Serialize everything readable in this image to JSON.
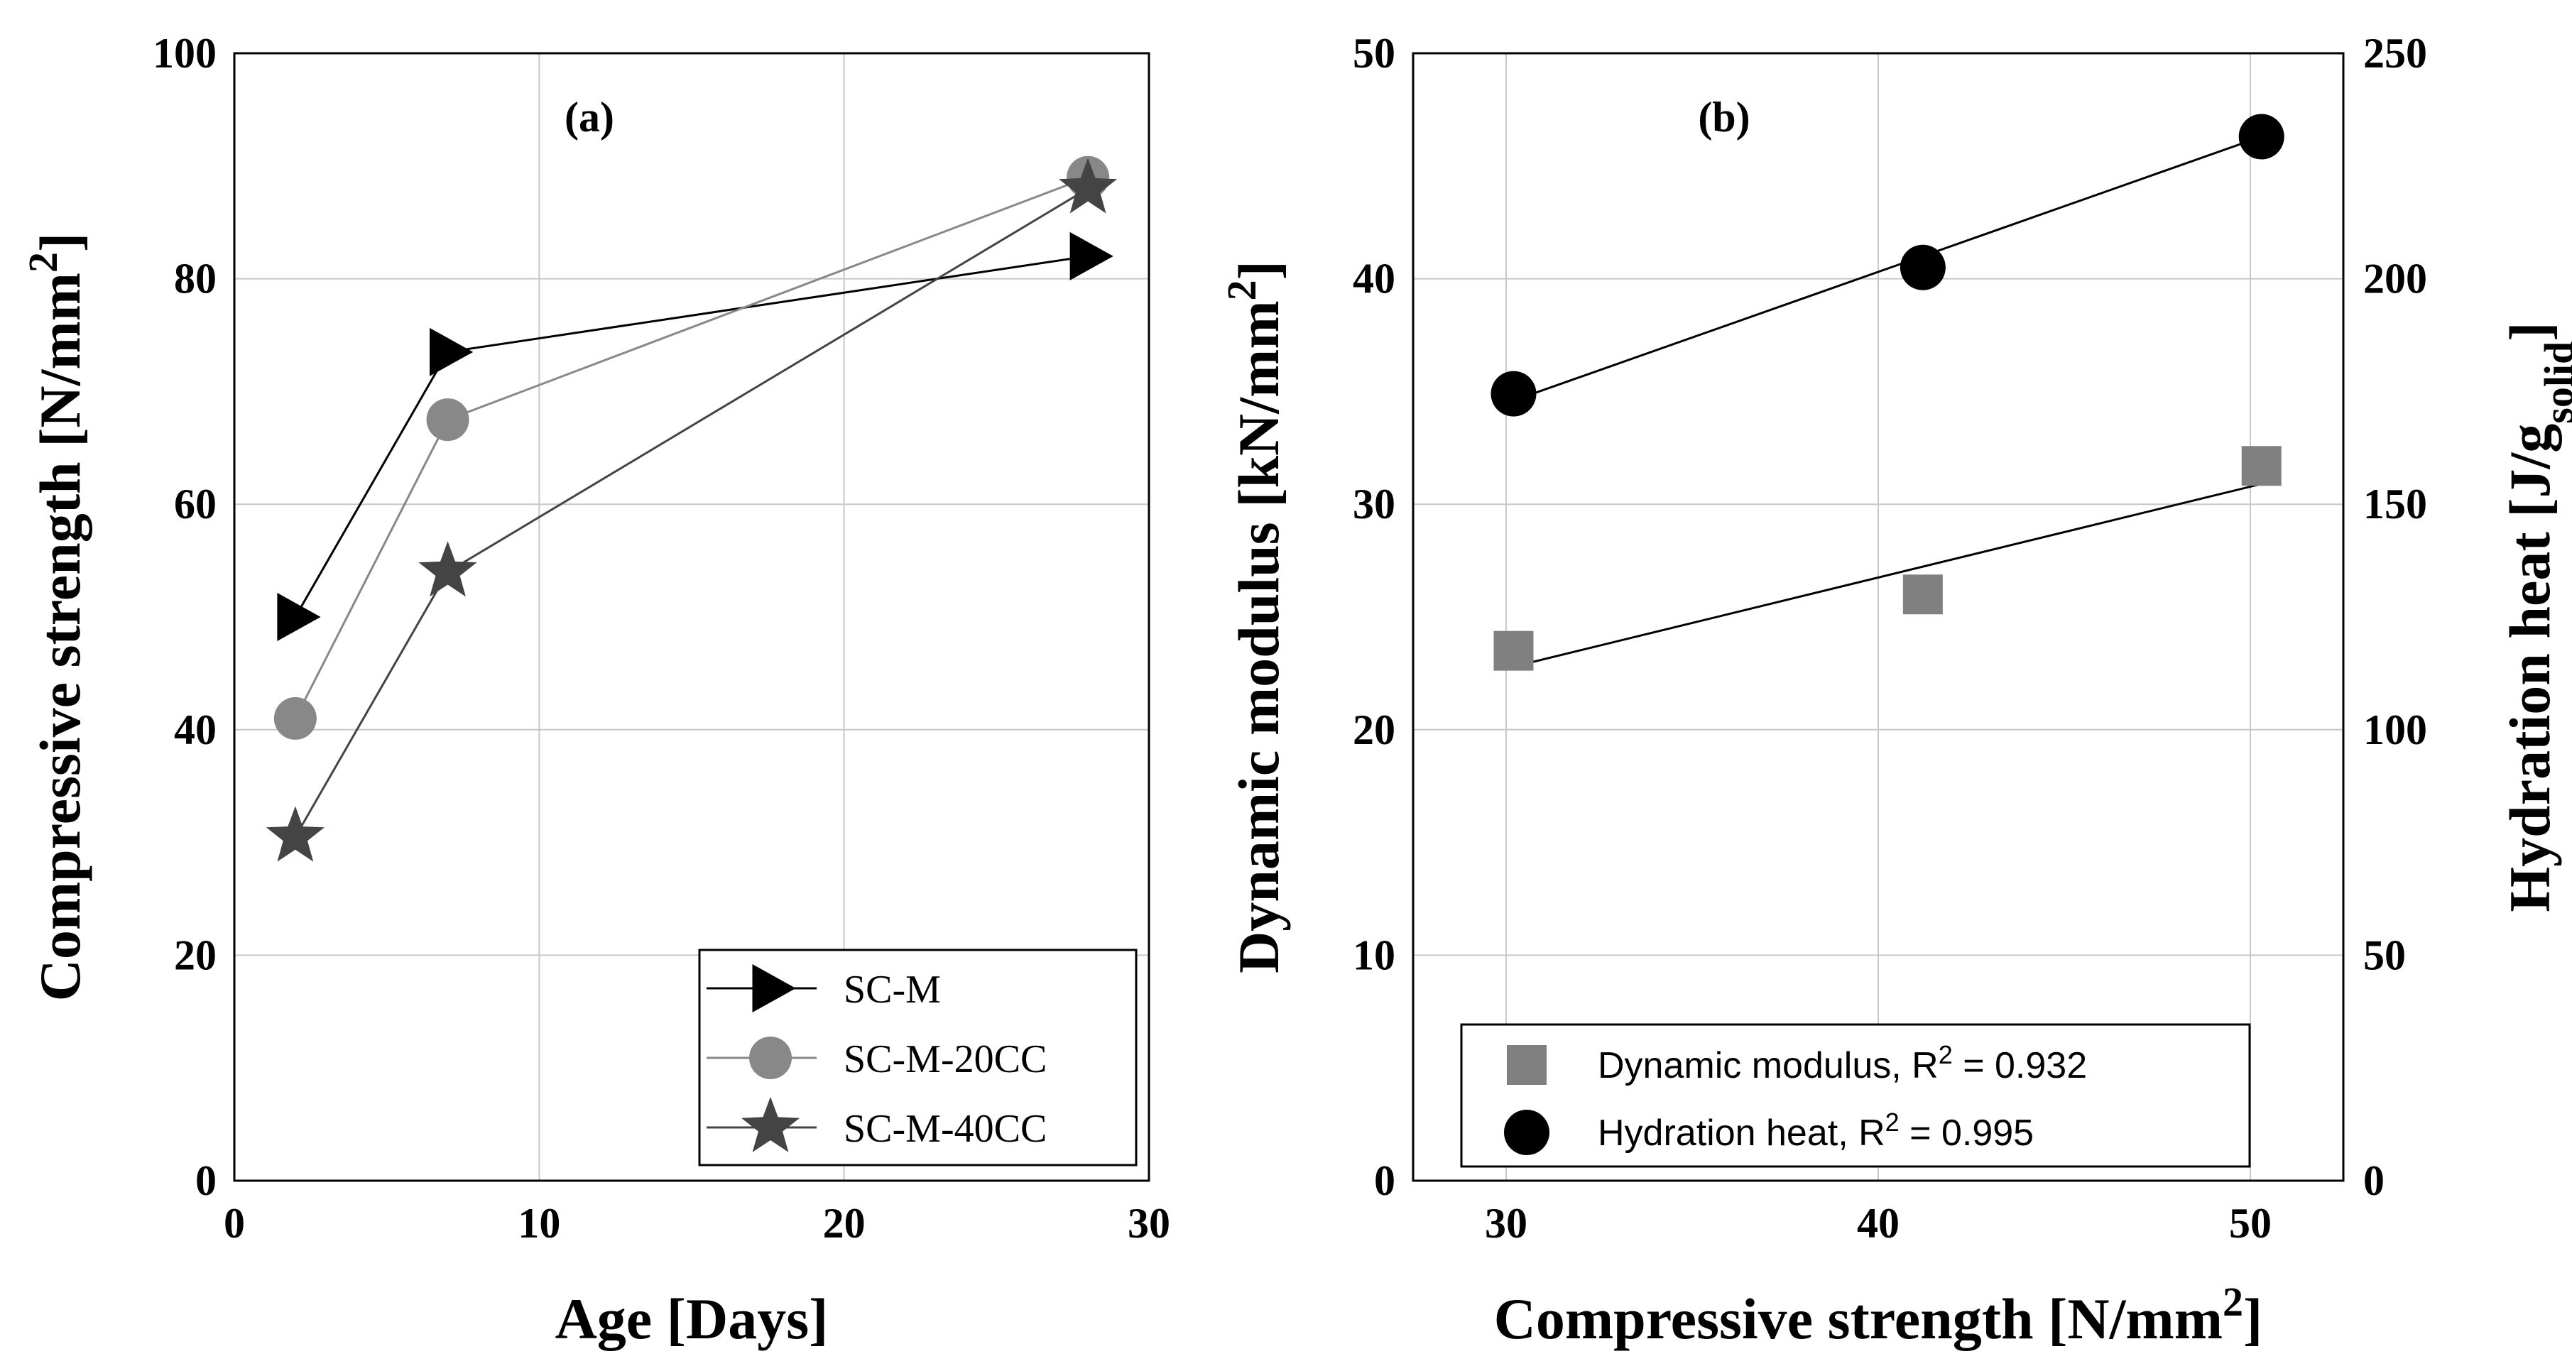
{
  "chart_data": [
    {
      "type": "line",
      "panel_label": "(a)",
      "xlabel": "Age [Days]",
      "ylabel": {
        "main": "Compressive strength [N/mm",
        "sup": "2",
        "tail": "]"
      },
      "xlim": [
        0,
        30
      ],
      "ylim": [
        0,
        100
      ],
      "xticks": [
        0,
        10,
        20,
        30
      ],
      "yticks": [
        0,
        20,
        40,
        60,
        80,
        100
      ],
      "grid": true,
      "legend_position": "bottom-right",
      "series": [
        {
          "name": "SC-M",
          "marker": "triangle-right",
          "color": "#000000",
          "x": [
            2,
            7,
            28
          ],
          "y": [
            50,
            73.5,
            82
          ]
        },
        {
          "name": "SC-M-20CC",
          "marker": "circle",
          "color": "#888888",
          "x": [
            2,
            7,
            28
          ],
          "y": [
            41,
            67.5,
            89
          ]
        },
        {
          "name": "SC-M-40CC",
          "marker": "star",
          "color": "#444444",
          "x": [
            2,
            7,
            28
          ],
          "y": [
            30.5,
            54,
            88
          ]
        }
      ]
    },
    {
      "type": "scatter",
      "panel_label": "(b)",
      "xlabel": {
        "main": "Compressive strength [N/mm",
        "sup": "2",
        "tail": "]"
      },
      "ylabel_left": {
        "main": "Dynamic modulus [kN/mm",
        "sup": "2",
        "tail": "]"
      },
      "ylabel_right": {
        "main": "Hydration heat [J/g",
        "sub": "solid",
        "tail": "]"
      },
      "xlim": [
        27.5,
        52.5
      ],
      "ylim_left": [
        0,
        50
      ],
      "ylim_right": [
        0,
        250
      ],
      "xticks": [
        30,
        40,
        50
      ],
      "yticks_left": [
        0,
        10,
        20,
        30,
        40,
        50
      ],
      "yticks_right": [
        0,
        50,
        100,
        150,
        200,
        250
      ],
      "grid": true,
      "legend_position": "bottom-left",
      "series": [
        {
          "name": "Dynamic modulus",
          "r2_label": ", R",
          "r2_sup": "2",
          "r2_value": " = 0.932",
          "marker": "square",
          "color": "#808080",
          "axis": "left",
          "x": [
            30.2,
            41.2,
            50.3
          ],
          "y": [
            23.5,
            26,
            31.7
          ],
          "fit": {
            "x": [
              30.2,
              50.3
            ],
            "y": [
              22.8,
              30.9
            ]
          }
        },
        {
          "name": "Hydration heat",
          "r2_label": ", R",
          "r2_sup": "2",
          "r2_value": " = 0.995",
          "marker": "circle",
          "color": "#000000",
          "axis": "right",
          "x": [
            30.2,
            41.2,
            50.3
          ],
          "y": [
            174.5,
            202.5,
            231.5
          ],
          "fit": {
            "x": [
              30.2,
              50.3
            ],
            "y": [
              173,
              231.5
            ]
          }
        }
      ]
    }
  ]
}
